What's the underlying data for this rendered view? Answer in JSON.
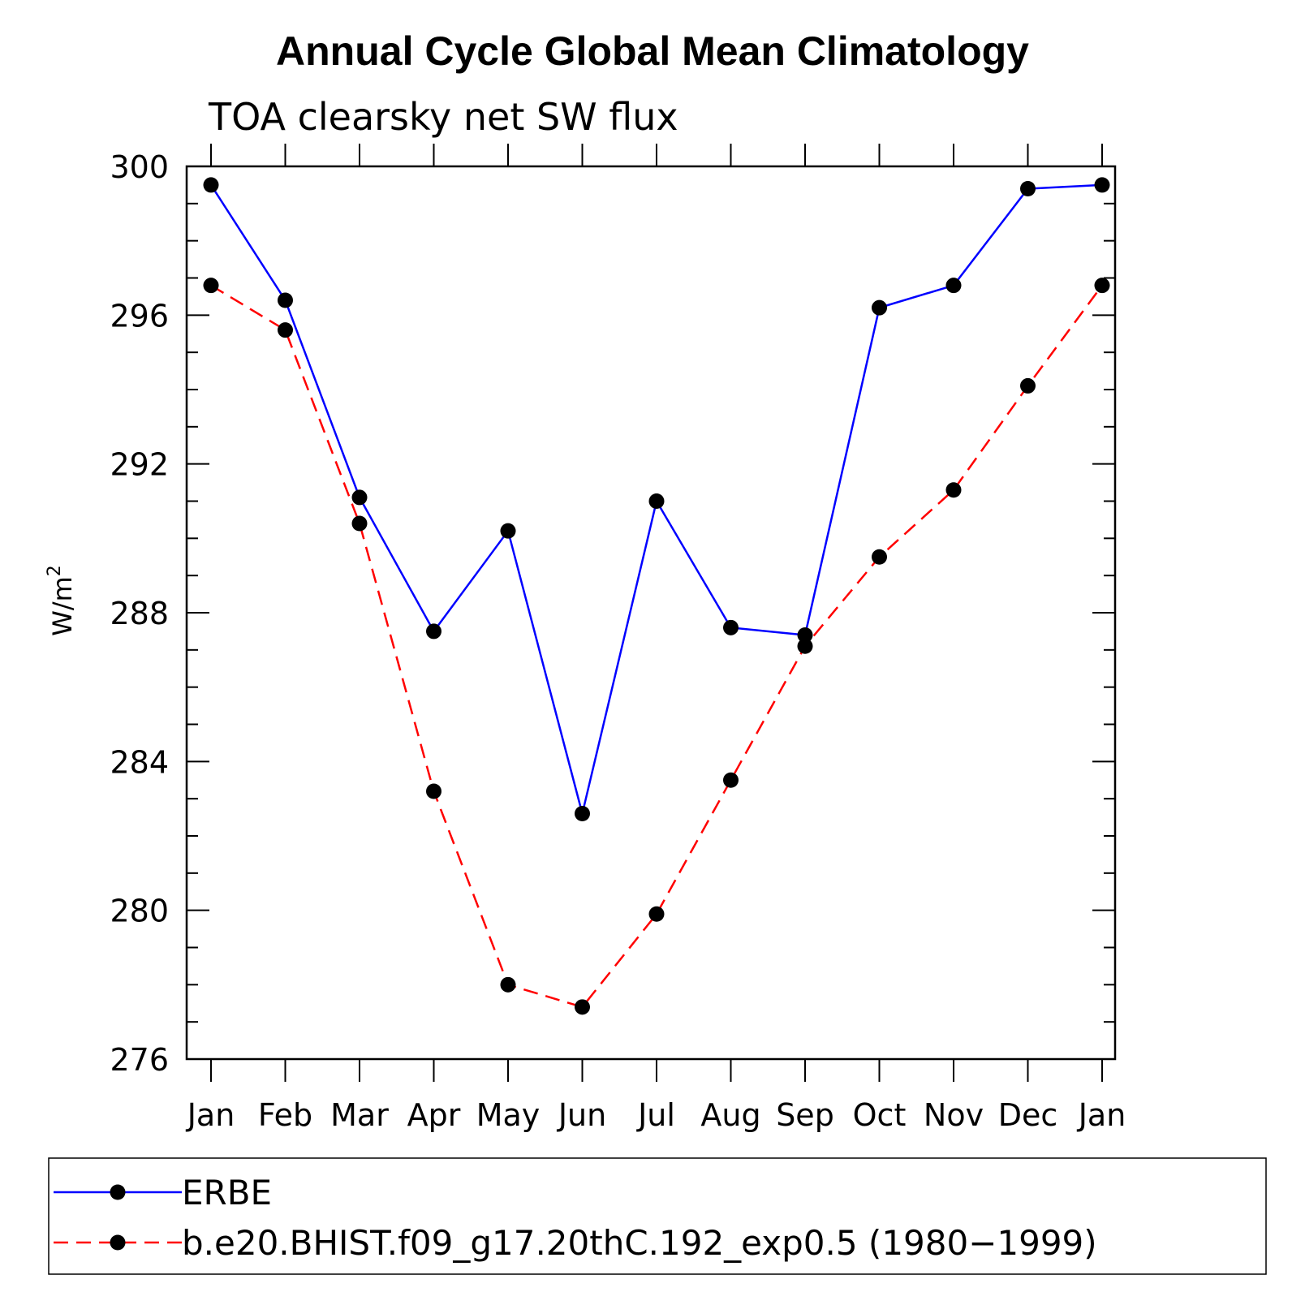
{
  "chart_data": {
    "type": "line",
    "title": "Annual Cycle Global Mean Climatology",
    "subtitle": "TOA clearsky net SW flux",
    "ylabel": "W/m",
    "ylabel_superscript": "2",
    "xlabel": "",
    "categories": [
      "Jan",
      "Feb",
      "Mar",
      "Apr",
      "May",
      "Jun",
      "Jul",
      "Aug",
      "Sep",
      "Oct",
      "Nov",
      "Dec",
      "Jan"
    ],
    "ylim": [
      276,
      300
    ],
    "yticks": [
      276,
      280,
      284,
      288,
      292,
      296,
      300
    ],
    "series": [
      {
        "name": "ERBE",
        "color": "#0000ff",
        "dash": "solid",
        "values": [
          299.5,
          296.4,
          291.1,
          287.5,
          290.2,
          282.6,
          291.0,
          287.6,
          287.4,
          296.2,
          296.8,
          299.4,
          299.5
        ]
      },
      {
        "name": "b.e20.BHIST.f09_g17.20thC.192_exp0.5 (1980−1999)",
        "color": "#ff0000",
        "dash": "dashed",
        "values": [
          296.8,
          295.6,
          290.4,
          283.2,
          278.0,
          277.4,
          279.9,
          283.5,
          287.1,
          289.5,
          291.3,
          294.1,
          296.8
        ]
      }
    ],
    "legend_position": "bottom"
  }
}
